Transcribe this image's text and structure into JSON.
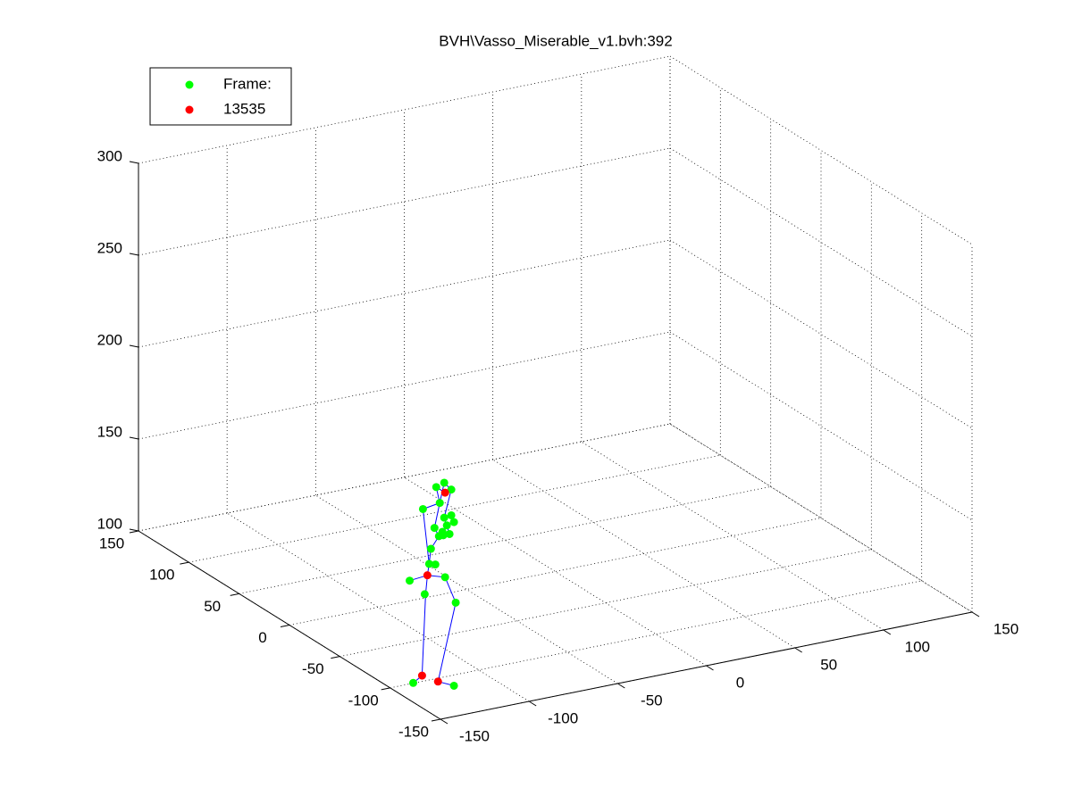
{
  "chart_data": {
    "type": "scatter3d",
    "title": "BVH\\Vasso_Miserable_v1.bvh:392",
    "xlim": [
      -150,
      150
    ],
    "ylim": [
      -150,
      150
    ],
    "zlim": [
      100,
      300
    ],
    "xticks": [
      -150,
      -100,
      -50,
      0,
      50,
      100,
      150
    ],
    "yticks": [
      -150,
      -100,
      -50,
      0,
      50,
      100,
      150
    ],
    "zticks": [
      100,
      150,
      200,
      250,
      300
    ],
    "grid": true,
    "legend": "upper left",
    "series": [
      {
        "type": "line",
        "color": "#0000ff",
        "x": [
          -133,
          -128,
          -126,
          -125,
          null,
          -135,
          -125,
          -115,
          -109,
          -119,
          -110,
          null,
          -125,
          -124,
          -123,
          -118.5,
          -121,
          -118,
          -120,
          -115,
          null,
          -118,
          -127.5,
          -124,
          null,
          -118,
          -115.5,
          -111.5,
          -115.5,
          -112.5,
          -116
        ],
        "y": [
          -93,
          -93,
          -93,
          -93,
          null,
          -93,
          -93,
          -93,
          -93,
          -93,
          -93,
          null,
          -93,
          -93,
          -93,
          -93,
          -93,
          -93,
          -93,
          -93,
          null,
          -93,
          -93,
          -93,
          null,
          -93,
          -93,
          -93,
          -93,
          -93,
          -93
        ],
        "z": [
          97,
          100,
          144,
          154,
          null,
          153,
          154,
          151,
          136,
          95,
          91,
          null,
          154,
          160,
          168,
          174,
          179,
          192,
          201,
          197,
          null,
          192,
          190.5,
          160,
          null,
          192,
          202.5,
          198,
          183.5,
          174,
          174
        ]
      },
      {
        "name": "Frame:",
        "color": "#00ff00",
        "x": [
          -133,
          -110,
          -126.5,
          -109,
          -135,
          -115,
          -124,
          -120.5,
          -123,
          -118.5,
          -121,
          -116.5,
          -115.5,
          -111.5,
          -110,
          -114,
          -118,
          -127.5,
          -120,
          -115.5,
          -111.5,
          -112.5,
          -116
        ],
        "y": [
          -93,
          -93,
          -93,
          -93,
          -93,
          -93,
          -93,
          -93,
          -93,
          -93,
          -93,
          -93,
          -93,
          -93,
          -93,
          -93,
          -93,
          -93,
          -93,
          -93,
          -93,
          -93,
          -93
        ],
        "z": [
          97,
          91,
          144,
          136,
          153,
          151,
          160,
          159,
          168,
          174,
          179,
          176,
          183.5,
          184,
          180,
          179,
          192,
          190.5,
          201,
          202.5,
          198,
          174,
          174
        ]
      },
      {
        "name": "13535",
        "color": "#ff0000",
        "x": [
          -128,
          -119,
          -125,
          -115
        ],
        "y": [
          -93,
          -93,
          -93,
          -93
        ],
        "z": [
          100,
          95,
          154,
          197
        ]
      }
    ]
  }
}
